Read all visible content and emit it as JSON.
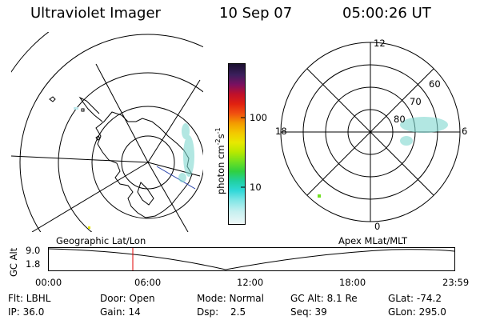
{
  "header": {
    "instrument": "Ultraviolet Imager",
    "date": "10 Sep 07",
    "time": "05:00:26 UT"
  },
  "colorbar": {
    "unit_label": "photon cm",
    "unit_sup1": "-2",
    "unit_mid": "s",
    "unit_sup2": "-1",
    "ticks": [
      "100",
      "10"
    ]
  },
  "mlt_plot": {
    "hour_labels": {
      "top": "12",
      "left": "18",
      "right": "6",
      "bottom": "0"
    },
    "lat_labels": [
      "60",
      "70",
      "80"
    ]
  },
  "timeline": {
    "left_title": "Geographic Lat/Lon",
    "right_title": "Apex MLat/MLT",
    "axis_label": "GC Alt",
    "y_ticks": [
      "9.0",
      "1.8"
    ],
    "x_ticks": [
      "00:00",
      "06:00",
      "12:00",
      "18:00",
      "23:59"
    ],
    "cursor_time": "05:00:26"
  },
  "status": {
    "flt": "Flt: LBHL",
    "ip": "IP: 36.0",
    "door": "Door: Open",
    "gain": "Gain: 14",
    "mode": "Mode: Normal",
    "dsp_label": "Dsp:",
    "dsp_value": "2.5",
    "gc_alt": "GC Alt: 8.1 Re",
    "seq": "Seq: 39",
    "glat": "GLat: -74.2",
    "glon": "GLon: 295.0"
  },
  "colors": {
    "cursor": "#e00000",
    "aurora": "#7fd8d0",
    "coastline_blue": "#1e3aa8"
  }
}
